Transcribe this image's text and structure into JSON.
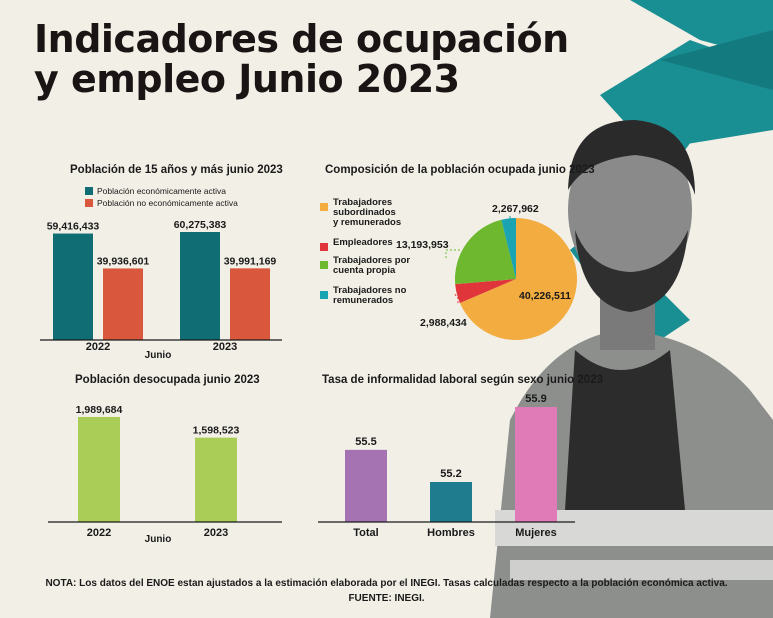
{
  "title_line1": "Indicadores de ocupación",
  "title_line2": "y empleo Junio 2023",
  "colors": {
    "activa": "#116d74",
    "no_activa": "#d9573c",
    "desocupada": "#a9cd57",
    "total": "#a673b2",
    "hombres": "#1f7c8f",
    "mujeres": "#e07bb7",
    "subordinados": "#f2ac40",
    "empleadores": "#e0353b",
    "cuenta_propia": "#6db82e",
    "no_remunerados": "#1aa3b0",
    "teal_deco": "#1a8f93"
  },
  "note": "NOTA: Los datos del ENOE estan ajustados a la estimación elaborada por el INEGI. Tasas calculadas respecto a la población económica activa.",
  "source": "FUENTE: INEGI.",
  "chart_data": [
    {
      "type": "bar",
      "title": "Población de 15 años y más junio 2023",
      "xlabel": "Junio",
      "categories": [
        "2022",
        "2023"
      ],
      "series": [
        {
          "name": "Población económicamente activa",
          "values": [
            59416433,
            60275383
          ],
          "labels": [
            "59,416,433",
            "60,275,383"
          ]
        },
        {
          "name": "Población no económicamente activa",
          "values": [
            39936601,
            39991169
          ],
          "labels": [
            "39,936,601",
            "39,991,169"
          ]
        }
      ],
      "ylim": [
        0,
        60275383
      ]
    },
    {
      "type": "pie",
      "title": "Composición de la población ocupada junio 2023",
      "slices": [
        {
          "name": "Trabajadores subordinados y remunerados",
          "value": 40226511,
          "label": "40,226,511"
        },
        {
          "name": "Empleadores",
          "value": 2988434,
          "label": "2,988,434"
        },
        {
          "name": "Trabajadores por cuenta propia",
          "value": 13193953,
          "label": "13,193,953"
        },
        {
          "name": "Trabajadores no remunerados",
          "value": 2267962,
          "label": "2,267,962"
        }
      ],
      "legend": [
        "Trabajadores\nsubordinados\ny remunerados",
        "Empleadores",
        "Trabajadores por\ncuenta propia",
        "Trabajadores no\nremunerados"
      ]
    },
    {
      "type": "bar",
      "title": "Población desocupada junio 2023",
      "xlabel": "Junio",
      "categories": [
        "2022",
        "2023"
      ],
      "values": [
        1989684,
        1598523
      ],
      "labels": [
        "1,989,684",
        "1,598,523"
      ],
      "ylim": [
        0,
        1989684
      ]
    },
    {
      "type": "bar",
      "title": "Tasa de informalidad laboral según sexo junio 2023",
      "categories": [
        "Total",
        "Hombres",
        "Mujeres"
      ],
      "values": [
        55.5,
        55.2,
        55.9
      ],
      "labels": [
        "55.5",
        "55.2",
        "55.9"
      ],
      "ylim": [
        55.0,
        55.9
      ]
    }
  ]
}
